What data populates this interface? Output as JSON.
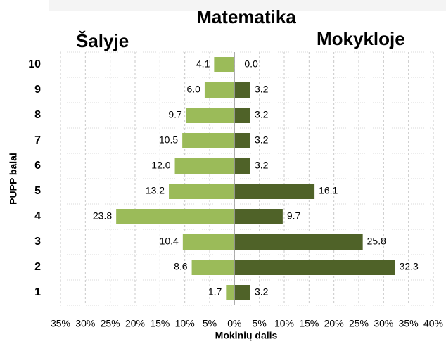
{
  "chart_data": {
    "type": "butterfly-bar",
    "title": "Matematika",
    "categories": [
      "10",
      "9",
      "8",
      "7",
      "6",
      "5",
      "4",
      "3",
      "2",
      "1"
    ],
    "series": [
      {
        "name": "Šalyje",
        "color": "#9bbb59",
        "values": [
          4.1,
          6.0,
          9.7,
          10.5,
          12.0,
          13.2,
          23.8,
          10.4,
          8.6,
          1.7
        ],
        "value_labels": [
          "4.1",
          "6.0",
          "9.7",
          "10.5",
          "12.0",
          "13.2",
          "23.8",
          "10.4",
          "8.6",
          "1.7"
        ]
      },
      {
        "name": "Mokykloje",
        "color": "#4f6228",
        "values": [
          0.0,
          3.2,
          3.2,
          3.2,
          3.2,
          16.1,
          9.7,
          25.8,
          32.3,
          3.2
        ],
        "value_labels": [
          "0.0",
          "3.2",
          "3.2",
          "3.2",
          "3.2",
          "16.1",
          "9.7",
          "25.8",
          "32.3",
          "3.2"
        ]
      }
    ],
    "xlabel": "Mokinių dalis",
    "ylabel": "PUPP balai",
    "xlim": [
      -35,
      40
    ],
    "xticks": [
      {
        "value": -35,
        "label": "35%"
      },
      {
        "value": -30,
        "label": "30%"
      },
      {
        "value": -25,
        "label": "25%"
      },
      {
        "value": -20,
        "label": "20%"
      },
      {
        "value": -15,
        "label": "15%"
      },
      {
        "value": -10,
        "label": "10%"
      },
      {
        "value": -5,
        "label": "5%"
      },
      {
        "value": 0,
        "label": "0%"
      },
      {
        "value": 5,
        "label": "5%"
      },
      {
        "value": 10,
        "label": "10%"
      },
      {
        "value": 15,
        "label": "15%"
      },
      {
        "value": 20,
        "label": "20%"
      },
      {
        "value": 25,
        "label": "25%"
      },
      {
        "value": 30,
        "label": "30%"
      },
      {
        "value": 35,
        "label": "35%"
      },
      {
        "value": 40,
        "label": "40%"
      }
    ],
    "grid": true
  }
}
